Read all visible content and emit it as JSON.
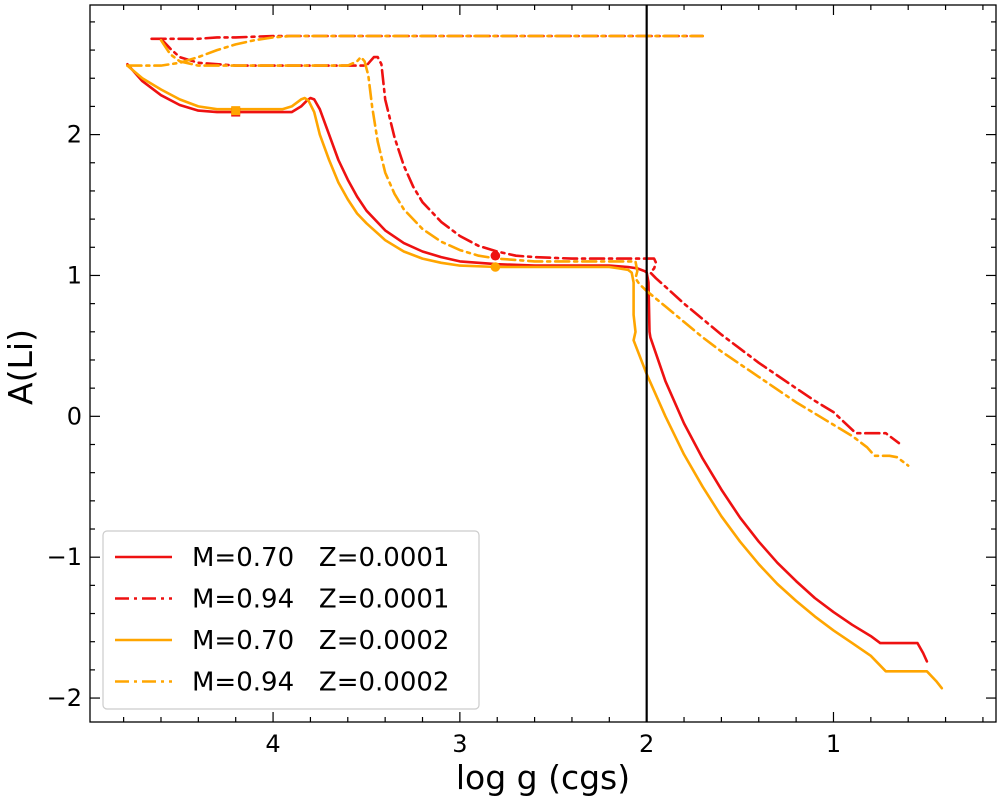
{
  "chart_data": {
    "type": "line",
    "xlabel": "log g (cgs)",
    "ylabel": "A(Li)",
    "xlim": [
      4.98,
      0.13
    ],
    "ylim": [
      -2.17,
      2.92
    ],
    "x_ticks": [
      4,
      3,
      2,
      1
    ],
    "x_tick_labels": [
      "4",
      "3",
      "2",
      "1"
    ],
    "y_ticks": [
      2,
      1,
      0,
      -1,
      -2
    ],
    "y_tick_labels": [
      "2",
      "1",
      "0",
      "−1",
      "−2"
    ],
    "vertical_line_x": 2.0,
    "legend_position": "lower-left",
    "series": [
      {
        "name": "M=0.70   Z=0.0001",
        "color": "#ee1111",
        "style": "solid",
        "points": [
          [
            4.78,
            2.5
          ],
          [
            4.7,
            2.38
          ],
          [
            4.6,
            2.28
          ],
          [
            4.5,
            2.21
          ],
          [
            4.4,
            2.17
          ],
          [
            4.3,
            2.16
          ],
          [
            4.2,
            2.16
          ],
          [
            4.0,
            2.16
          ],
          [
            3.9,
            2.16
          ],
          [
            3.85,
            2.2
          ],
          [
            3.82,
            2.24
          ],
          [
            3.8,
            2.26
          ],
          [
            3.78,
            2.25
          ],
          [
            3.75,
            2.18
          ],
          [
            3.7,
            2.0
          ],
          [
            3.65,
            1.82
          ],
          [
            3.6,
            1.68
          ],
          [
            3.55,
            1.56
          ],
          [
            3.5,
            1.46
          ],
          [
            3.4,
            1.32
          ],
          [
            3.3,
            1.23
          ],
          [
            3.2,
            1.17
          ],
          [
            3.1,
            1.13
          ],
          [
            3.0,
            1.1
          ],
          [
            2.8,
            1.08
          ],
          [
            2.6,
            1.07
          ],
          [
            2.4,
            1.07
          ],
          [
            2.2,
            1.07
          ],
          [
            2.1,
            1.06
          ],
          [
            2.05,
            1.05
          ],
          [
            2.01,
            1.03
          ],
          [
            2.0,
            1.02
          ],
          [
            1.99,
            0.95
          ],
          [
            1.985,
            0.6
          ],
          [
            1.98,
            0.56
          ],
          [
            1.9,
            0.25
          ],
          [
            1.8,
            -0.05
          ],
          [
            1.7,
            -0.3
          ],
          [
            1.6,
            -0.52
          ],
          [
            1.5,
            -0.72
          ],
          [
            1.4,
            -0.89
          ],
          [
            1.3,
            -1.04
          ],
          [
            1.2,
            -1.17
          ],
          [
            1.1,
            -1.29
          ],
          [
            1.0,
            -1.39
          ],
          [
            0.9,
            -1.48
          ],
          [
            0.8,
            -1.56
          ],
          [
            0.75,
            -1.61
          ],
          [
            0.68,
            -1.61
          ],
          [
            0.6,
            -1.61
          ],
          [
            0.55,
            -1.61
          ],
          [
            0.52,
            -1.68
          ],
          [
            0.5,
            -1.74
          ]
        ],
        "markers": [
          [
            4.2,
            2.16
          ]
        ],
        "marker_shape": "square"
      },
      {
        "name": "M=0.94   Z=0.0001",
        "color": "#ee1111",
        "style": "dashdot",
        "points": [
          [
            4.65,
            2.68
          ],
          [
            4.5,
            2.68
          ],
          [
            4.4,
            2.68
          ],
          [
            4.3,
            2.69
          ],
          [
            4.2,
            2.69
          ],
          [
            4.0,
            2.7
          ],
          [
            3.8,
            2.7
          ],
          [
            3.6,
            2.7
          ],
          [
            3.4,
            2.7
          ],
          [
            3.2,
            2.7
          ],
          [
            3.0,
            2.7
          ],
          [
            2.8,
            2.7
          ],
          [
            2.6,
            2.7
          ],
          [
            2.4,
            2.7
          ],
          [
            2.2,
            2.7
          ],
          [
            2.0,
            2.7
          ],
          [
            1.8,
            2.7
          ],
          [
            1.7,
            2.7
          ]
        ],
        "branch_points": [
          [
            4.6,
            2.68
          ],
          [
            4.55,
            2.61
          ],
          [
            4.5,
            2.55
          ],
          [
            4.4,
            2.51
          ],
          [
            4.3,
            2.5
          ],
          [
            4.2,
            2.49
          ],
          [
            4.0,
            2.49
          ],
          [
            3.8,
            2.49
          ],
          [
            3.6,
            2.49
          ],
          [
            3.5,
            2.49
          ],
          [
            3.48,
            2.52
          ],
          [
            3.46,
            2.55
          ],
          [
            3.44,
            2.55
          ],
          [
            3.42,
            2.5
          ],
          [
            3.4,
            2.25
          ],
          [
            3.35,
            1.98
          ],
          [
            3.3,
            1.78
          ],
          [
            3.25,
            1.63
          ],
          [
            3.2,
            1.52
          ],
          [
            3.1,
            1.38
          ],
          [
            3.0,
            1.28
          ],
          [
            2.9,
            1.21
          ],
          [
            2.8,
            1.17
          ],
          [
            2.7,
            1.14
          ],
          [
            2.6,
            1.13
          ],
          [
            2.4,
            1.12
          ],
          [
            2.2,
            1.12
          ],
          [
            2.0,
            1.12
          ],
          [
            1.96,
            1.12
          ],
          [
            1.95,
            1.09
          ],
          [
            1.96,
            1.05
          ],
          [
            1.98,
            1.02
          ],
          [
            1.95,
            0.98
          ],
          [
            1.9,
            0.92
          ],
          [
            1.8,
            0.8
          ],
          [
            1.7,
            0.69
          ],
          [
            1.6,
            0.58
          ],
          [
            1.5,
            0.48
          ],
          [
            1.4,
            0.38
          ],
          [
            1.3,
            0.29
          ],
          [
            1.2,
            0.2
          ],
          [
            1.1,
            0.11
          ],
          [
            1.0,
            0.03
          ],
          [
            0.92,
            -0.07
          ],
          [
            0.88,
            -0.12
          ],
          [
            0.8,
            -0.12
          ],
          [
            0.72,
            -0.12
          ],
          [
            0.68,
            -0.16
          ],
          [
            0.65,
            -0.19
          ]
        ],
        "markers": [
          [
            2.81,
            1.14
          ]
        ],
        "marker_shape": "circle"
      },
      {
        "name": "M=0.70   Z=0.0002",
        "color": "#ffa500",
        "style": "solid",
        "points": [
          [
            4.78,
            2.49
          ],
          [
            4.7,
            2.4
          ],
          [
            4.6,
            2.32
          ],
          [
            4.5,
            2.25
          ],
          [
            4.4,
            2.2
          ],
          [
            4.3,
            2.18
          ],
          [
            4.2,
            2.18
          ],
          [
            4.0,
            2.18
          ],
          [
            3.95,
            2.18
          ],
          [
            3.9,
            2.2
          ],
          [
            3.85,
            2.25
          ],
          [
            3.83,
            2.26
          ],
          [
            3.81,
            2.24
          ],
          [
            3.78,
            2.16
          ],
          [
            3.75,
            2.0
          ],
          [
            3.7,
            1.82
          ],
          [
            3.65,
            1.66
          ],
          [
            3.6,
            1.54
          ],
          [
            3.55,
            1.44
          ],
          [
            3.5,
            1.37
          ],
          [
            3.4,
            1.25
          ],
          [
            3.3,
            1.17
          ],
          [
            3.2,
            1.12
          ],
          [
            3.1,
            1.09
          ],
          [
            3.0,
            1.07
          ],
          [
            2.8,
            1.06
          ],
          [
            2.6,
            1.06
          ],
          [
            2.4,
            1.06
          ],
          [
            2.2,
            1.06
          ],
          [
            2.15,
            1.05
          ],
          [
            2.1,
            1.04
          ],
          [
            2.08,
            1.02
          ],
          [
            2.07,
            0.95
          ],
          [
            2.07,
            0.72
          ],
          [
            2.06,
            0.6
          ],
          [
            2.07,
            0.54
          ],
          [
            2.0,
            0.3
          ],
          [
            1.9,
            0.0
          ],
          [
            1.8,
            -0.27
          ],
          [
            1.7,
            -0.5
          ],
          [
            1.6,
            -0.71
          ],
          [
            1.5,
            -0.89
          ],
          [
            1.4,
            -1.05
          ],
          [
            1.3,
            -1.19
          ],
          [
            1.2,
            -1.31
          ],
          [
            1.1,
            -1.42
          ],
          [
            1.0,
            -1.52
          ],
          [
            0.9,
            -1.61
          ],
          [
            0.8,
            -1.7
          ],
          [
            0.72,
            -1.81
          ],
          [
            0.65,
            -1.81
          ],
          [
            0.55,
            -1.81
          ],
          [
            0.5,
            -1.81
          ],
          [
            0.45,
            -1.88
          ],
          [
            0.42,
            -1.93
          ]
        ],
        "markers": [
          [
            4.2,
            2.17
          ]
        ],
        "marker_shape": "square"
      },
      {
        "name": "M=0.94   Z=0.0002",
        "color": "#ffa500",
        "style": "dashdot",
        "points": [
          [
            4.78,
            2.49
          ],
          [
            4.6,
            2.49
          ],
          [
            4.5,
            2.51
          ],
          [
            4.4,
            2.55
          ],
          [
            4.3,
            2.6
          ],
          [
            4.2,
            2.64
          ],
          [
            4.1,
            2.67
          ],
          [
            4.0,
            2.69
          ],
          [
            3.9,
            2.7
          ],
          [
            3.8,
            2.7
          ],
          [
            3.6,
            2.7
          ],
          [
            3.4,
            2.7
          ],
          [
            3.2,
            2.7
          ],
          [
            3.0,
            2.7
          ],
          [
            2.8,
            2.7
          ],
          [
            2.6,
            2.7
          ],
          [
            2.4,
            2.7
          ],
          [
            2.2,
            2.7
          ],
          [
            2.0,
            2.7
          ],
          [
            1.8,
            2.7
          ],
          [
            1.7,
            2.7
          ]
        ],
        "branch_points": [
          [
            4.6,
            2.67
          ],
          [
            4.55,
            2.57
          ],
          [
            4.5,
            2.52
          ],
          [
            4.4,
            2.49
          ],
          [
            4.3,
            2.49
          ],
          [
            4.2,
            2.49
          ],
          [
            4.0,
            2.49
          ],
          [
            3.8,
            2.49
          ],
          [
            3.6,
            2.49
          ],
          [
            3.55,
            2.52
          ],
          [
            3.53,
            2.55
          ],
          [
            3.51,
            2.52
          ],
          [
            3.49,
            2.42
          ],
          [
            3.47,
            2.2
          ],
          [
            3.44,
            1.95
          ],
          [
            3.4,
            1.73
          ],
          [
            3.35,
            1.58
          ],
          [
            3.3,
            1.47
          ],
          [
            3.2,
            1.33
          ],
          [
            3.1,
            1.24
          ],
          [
            3.0,
            1.18
          ],
          [
            2.9,
            1.14
          ],
          [
            2.8,
            1.12
          ],
          [
            2.6,
            1.1
          ],
          [
            2.4,
            1.1
          ],
          [
            2.2,
            1.1
          ],
          [
            2.06,
            1.1
          ],
          [
            2.05,
            1.03
          ],
          [
            2.06,
            0.98
          ],
          [
            2.04,
            0.94
          ],
          [
            2.0,
            0.89
          ],
          [
            1.9,
            0.78
          ],
          [
            1.8,
            0.67
          ],
          [
            1.7,
            0.56
          ],
          [
            1.6,
            0.46
          ],
          [
            1.5,
            0.37
          ],
          [
            1.4,
            0.28
          ],
          [
            1.3,
            0.19
          ],
          [
            1.2,
            0.1
          ],
          [
            1.1,
            0.02
          ],
          [
            1.0,
            -0.06
          ],
          [
            0.9,
            -0.14
          ],
          [
            0.82,
            -0.22
          ],
          [
            0.78,
            -0.28
          ],
          [
            0.7,
            -0.28
          ],
          [
            0.66,
            -0.29
          ],
          [
            0.62,
            -0.33
          ],
          [
            0.6,
            -0.35
          ]
        ],
        "markers": [
          [
            2.81,
            1.06
          ]
        ],
        "marker_shape": "circle"
      }
    ]
  }
}
